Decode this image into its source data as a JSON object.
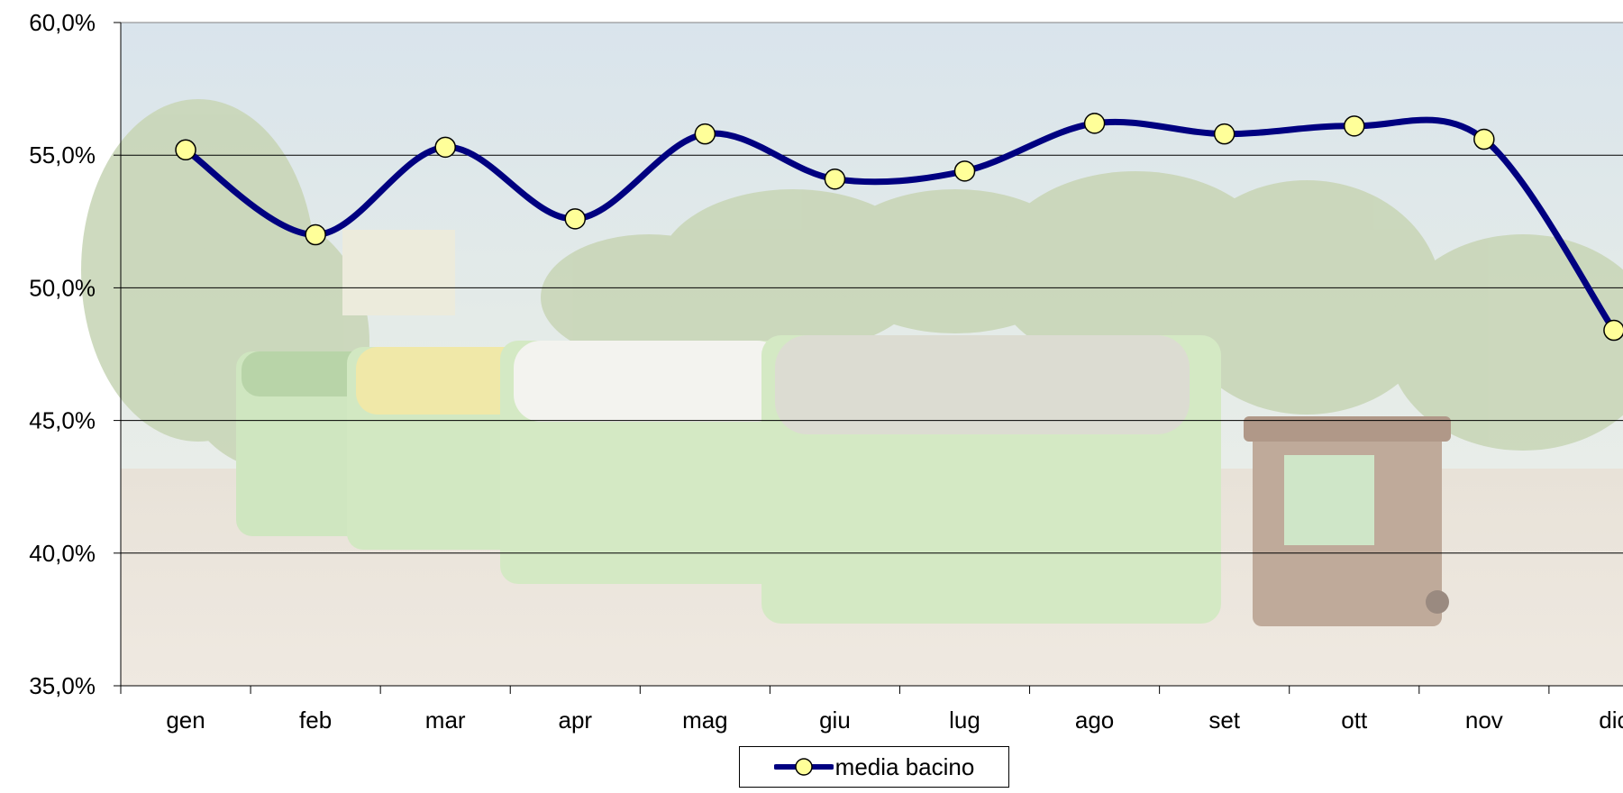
{
  "chart_data": {
    "type": "line",
    "categories": [
      "gen",
      "feb",
      "mar",
      "apr",
      "mag",
      "giu",
      "lug",
      "ago",
      "set",
      "ott",
      "nov",
      "dic"
    ],
    "series": [
      {
        "name": "media bacino",
        "values": [
          55.2,
          52.0,
          55.3,
          52.6,
          55.8,
          54.1,
          54.4,
          56.2,
          55.8,
          56.1,
          55.6,
          48.4
        ],
        "line_color": "#000080",
        "marker_fill": "#ffff99",
        "marker_stroke": "#000000"
      }
    ],
    "y_ticks": [
      "35,0%",
      "40,0%",
      "45,0%",
      "50,0%",
      "55,0%",
      "60,0%"
    ],
    "ylim": [
      35,
      60
    ],
    "y_unit": "%",
    "grid": true,
    "smooth": true,
    "legend_position": "bottom",
    "background": "faded photo of waste collection bins in a park"
  }
}
